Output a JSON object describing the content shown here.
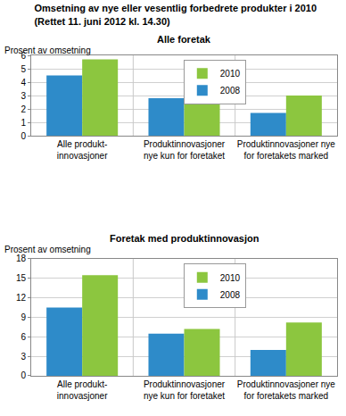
{
  "title": "Omsetning av nye eller vesentlig forbedrete produkter i 2010",
  "subtitle": "(Rettet 11. juni 2012 kl. 14.30)",
  "chart_data": [
    {
      "type": "bar",
      "title": "Alle foretak",
      "y_label": "Prosent av omsetning",
      "categories": [
        "Alle produkt-\ninnovasjoner",
        "Produktinnovasjoner\nnye kun for foretaket",
        "Produktinnovasjoner nye\nfor foretakets marked"
      ],
      "series": [
        {
          "name": "2008",
          "color": "#2e8bc9",
          "values": [
            4.5,
            2.8,
            1.7
          ]
        },
        {
          "name": "2010",
          "color": "#8cc63f",
          "values": [
            5.7,
            2.7,
            3.0
          ]
        }
      ],
      "ylim": [
        0,
        6
      ],
      "yticks": [
        0,
        1,
        2,
        3,
        4,
        5,
        6
      ],
      "grid": true,
      "legend": "top"
    },
    {
      "type": "bar",
      "title": "Foretak med produktinnovasjon",
      "y_label": "Prosent av omsetning",
      "categories": [
        "Alle produkt-\ninnovasjoner",
        "Produktinnovasjoner\nnye kun for foretaket",
        "Produktinnovasjoner nye\nfor foretakets marked"
      ],
      "series": [
        {
          "name": "2008",
          "color": "#2e8bc9",
          "values": [
            10.5,
            6.5,
            4.0
          ]
        },
        {
          "name": "2010",
          "color": "#8cc63f",
          "values": [
            15.5,
            7.2,
            8.2
          ]
        }
      ],
      "ylim": [
        0,
        18
      ],
      "yticks": [
        0,
        3,
        6,
        9,
        12,
        15,
        18
      ],
      "grid": true,
      "legend": "top"
    }
  ]
}
